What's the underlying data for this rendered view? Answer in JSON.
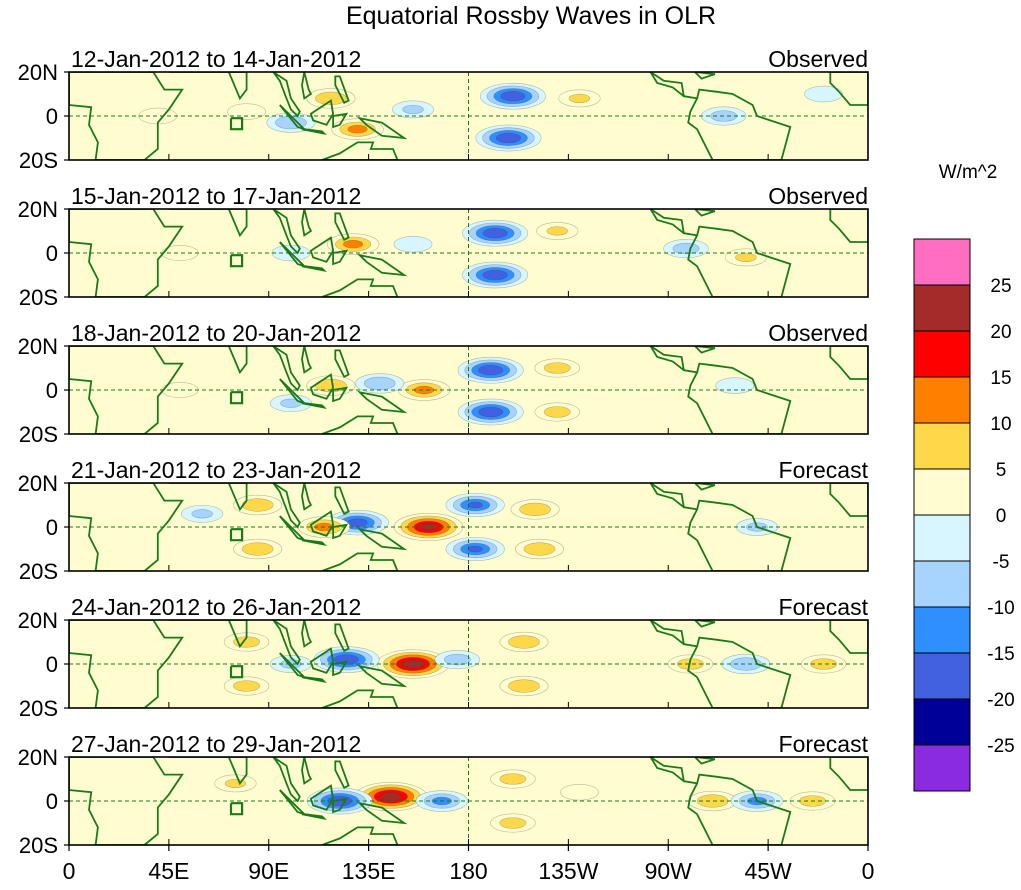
{
  "chart_data": {
    "type": "heatmap",
    "title": "Equatorial Rossby Waves in OLR",
    "units_label": "W/m^2",
    "x_ticks": [
      "0",
      "45E",
      "90E",
      "135E",
      "180",
      "135W",
      "90W",
      "45W",
      "0"
    ],
    "x_tick_values": [
      0,
      45,
      90,
      135,
      180,
      225,
      270,
      315,
      360
    ],
    "y_ticks": [
      "20N",
      "0",
      "20S"
    ],
    "y_tick_values": [
      20,
      0,
      -20
    ],
    "xlim": [
      0,
      360
    ],
    "ylim": [
      -20,
      20
    ],
    "colorbar": {
      "levels": [
        "25",
        "20",
        "15",
        "10",
        "5",
        "0",
        "-5",
        "-10",
        "-15",
        "-20",
        "-25"
      ],
      "colors": [
        "#ff6ec0",
        "#a52a2a",
        "#ff0000",
        "#ff7f00",
        "#ffd84a",
        "#fffdd0",
        "#d8f6ff",
        "#a6d4ff",
        "#2f8fff",
        "#4161e0",
        "#000099",
        "#8a2be2"
      ]
    },
    "panels": [
      {
        "period": "12-Jan-2012 to 14-Jan-2012",
        "kind": "Observed",
        "blobs": [
          {
            "lon": 200,
            "lat": 9,
            "value": -22
          },
          {
            "lon": 198,
            "lat": -10,
            "value": -22
          },
          {
            "lon": 118,
            "lat": 8,
            "value": 12
          },
          {
            "lon": 130,
            "lat": -6,
            "value": 14
          },
          {
            "lon": 100,
            "lat": -3,
            "value": -12
          },
          {
            "lon": 155,
            "lat": 3,
            "value": -8
          },
          {
            "lon": 230,
            "lat": 8,
            "value": 8
          },
          {
            "lon": 80,
            "lat": 2,
            "value": 6
          },
          {
            "lon": 295,
            "lat": 0,
            "value": -10
          },
          {
            "lon": 40,
            "lat": 0,
            "value": 6
          },
          {
            "lon": 340,
            "lat": 10,
            "value": -6
          }
        ]
      },
      {
        "period": "15-Jan-2012 to 17-Jan-2012",
        "kind": "Observed",
        "blobs": [
          {
            "lon": 192,
            "lat": 9,
            "value": -22
          },
          {
            "lon": 192,
            "lat": -10,
            "value": -22
          },
          {
            "lon": 128,
            "lat": 4,
            "value": 14
          },
          {
            "lon": 220,
            "lat": 10,
            "value": 8
          },
          {
            "lon": 100,
            "lat": 0,
            "value": -6
          },
          {
            "lon": 278,
            "lat": 2,
            "value": -10
          },
          {
            "lon": 305,
            "lat": -2,
            "value": 8
          },
          {
            "lon": 155,
            "lat": 4,
            "value": -6
          },
          {
            "lon": 50,
            "lat": 0,
            "value": 5
          }
        ]
      },
      {
        "period": "18-Jan-2012 to 20-Jan-2012",
        "kind": "Observed",
        "blobs": [
          {
            "lon": 190,
            "lat": 9,
            "value": -22
          },
          {
            "lon": 190,
            "lat": -10,
            "value": -22
          },
          {
            "lon": 160,
            "lat": 0,
            "value": 14
          },
          {
            "lon": 118,
            "lat": 2,
            "value": 12
          },
          {
            "lon": 140,
            "lat": 3,
            "value": -12
          },
          {
            "lon": 220,
            "lat": 10,
            "value": 10
          },
          {
            "lon": 220,
            "lat": -10,
            "value": 10
          },
          {
            "lon": 100,
            "lat": -6,
            "value": -8
          },
          {
            "lon": 300,
            "lat": 2,
            "value": -6
          },
          {
            "lon": 50,
            "lat": 0,
            "value": 5
          }
        ]
      },
      {
        "period": "21-Jan-2012 to 23-Jan-2012",
        "kind": "Forecast",
        "blobs": [
          {
            "lon": 162,
            "lat": 0,
            "value": 24
          },
          {
            "lon": 130,
            "lat": 2,
            "value": -20
          },
          {
            "lon": 183,
            "lat": 10,
            "value": -18
          },
          {
            "lon": 183,
            "lat": -10,
            "value": -18
          },
          {
            "lon": 85,
            "lat": 10,
            "value": 12
          },
          {
            "lon": 85,
            "lat": -10,
            "value": 12
          },
          {
            "lon": 210,
            "lat": 8,
            "value": 12
          },
          {
            "lon": 212,
            "lat": -10,
            "value": 12
          },
          {
            "lon": 115,
            "lat": 0,
            "value": 14
          },
          {
            "lon": 60,
            "lat": 6,
            "value": -8
          },
          {
            "lon": 310,
            "lat": 0,
            "value": -8
          }
        ]
      },
      {
        "period": "24-Jan-2012 to 26-Jan-2012",
        "kind": "Forecast",
        "blobs": [
          {
            "lon": 155,
            "lat": 0,
            "value": 26
          },
          {
            "lon": 125,
            "lat": 2,
            "value": -22
          },
          {
            "lon": 175,
            "lat": 2,
            "value": -10
          },
          {
            "lon": 205,
            "lat": 10,
            "value": 12
          },
          {
            "lon": 205,
            "lat": -10,
            "value": 12
          },
          {
            "lon": 80,
            "lat": 10,
            "value": 10
          },
          {
            "lon": 80,
            "lat": -10,
            "value": 10
          },
          {
            "lon": 100,
            "lat": 0,
            "value": -8
          },
          {
            "lon": 280,
            "lat": 0,
            "value": 10
          },
          {
            "lon": 305,
            "lat": 0,
            "value": -12
          },
          {
            "lon": 340,
            "lat": 0,
            "value": 10
          }
        ]
      },
      {
        "period": "27-Jan-2012 to 29-Jan-2012",
        "kind": "Forecast",
        "blobs": [
          {
            "lon": 145,
            "lat": 2,
            "value": 26
          },
          {
            "lon": 122,
            "lat": 0,
            "value": -22
          },
          {
            "lon": 168,
            "lat": 0,
            "value": -14
          },
          {
            "lon": 200,
            "lat": 10,
            "value": 10
          },
          {
            "lon": 200,
            "lat": -10,
            "value": 10
          },
          {
            "lon": 75,
            "lat": 8,
            "value": 8
          },
          {
            "lon": 290,
            "lat": 0,
            "value": 12
          },
          {
            "lon": 310,
            "lat": 0,
            "value": -14
          },
          {
            "lon": 335,
            "lat": 0,
            "value": 10
          },
          {
            "lon": 230,
            "lat": 4,
            "value": 6
          }
        ]
      }
    ]
  }
}
